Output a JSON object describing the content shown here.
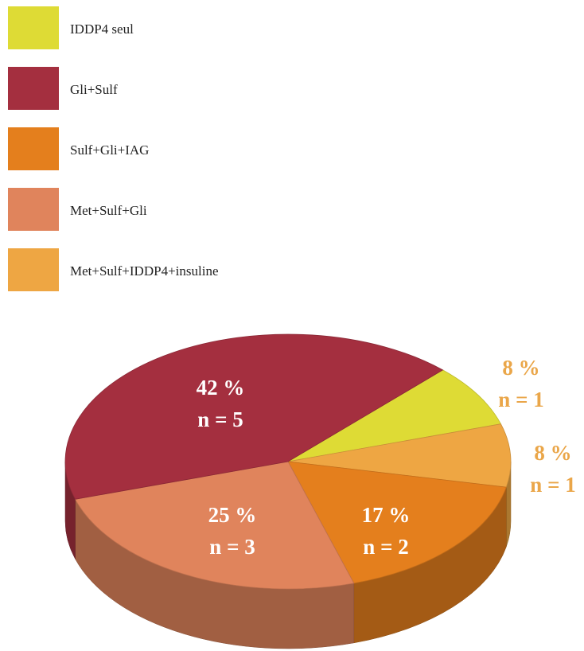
{
  "chart_data": {
    "type": "pie",
    "categories": [
      "IDDP4 seul",
      "Gli+Sulf",
      "Sulf+Gli+IAG",
      "Met+Sulf+Gli",
      "Met+Sulf+IDDP4+insuline"
    ],
    "values": [
      8,
      42,
      17,
      25,
      8
    ],
    "value_labels": [
      "8 %",
      "42 %",
      "17 %",
      "25 %",
      "8 %"
    ],
    "counts": [
      1,
      5,
      2,
      3,
      1
    ],
    "count_labels": [
      "n = 1",
      "n = 5",
      "n = 2",
      "n = 3",
      "n = 1"
    ],
    "colors": [
      "#dedb35",
      "#a42f3f",
      "#e47f1d",
      "#e0845c",
      "#eea643"
    ],
    "legend": "top-left"
  }
}
